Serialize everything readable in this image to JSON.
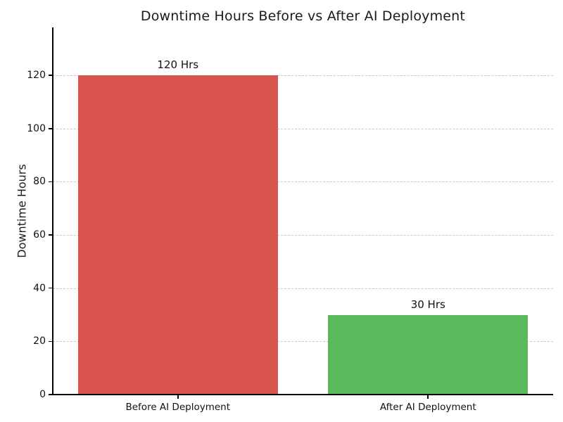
{
  "chart_data": {
    "type": "bar",
    "title": "Downtime Hours Before vs After AI Deployment",
    "categories": [
      "Before AI Deployment",
      "After AI Deployment"
    ],
    "values": [
      120,
      30
    ],
    "value_labels": [
      "120 Hrs",
      "30 Hrs"
    ],
    "bar_colors": [
      "#d9534f",
      "#5cb85c"
    ],
    "xlabel": "",
    "ylabel": "Downtime Hours",
    "yticks": [
      0,
      20,
      40,
      60,
      80,
      100,
      120
    ],
    "ylim": [
      0,
      138
    ],
    "bar_width_fraction": 0.8,
    "grid": {
      "axis": "y",
      "style": "dashed",
      "color": "#c8c8c8"
    },
    "legend": "none",
    "background": "#ffffff",
    "axis_color": "#000000",
    "title_color": "#1a1a1a"
  }
}
